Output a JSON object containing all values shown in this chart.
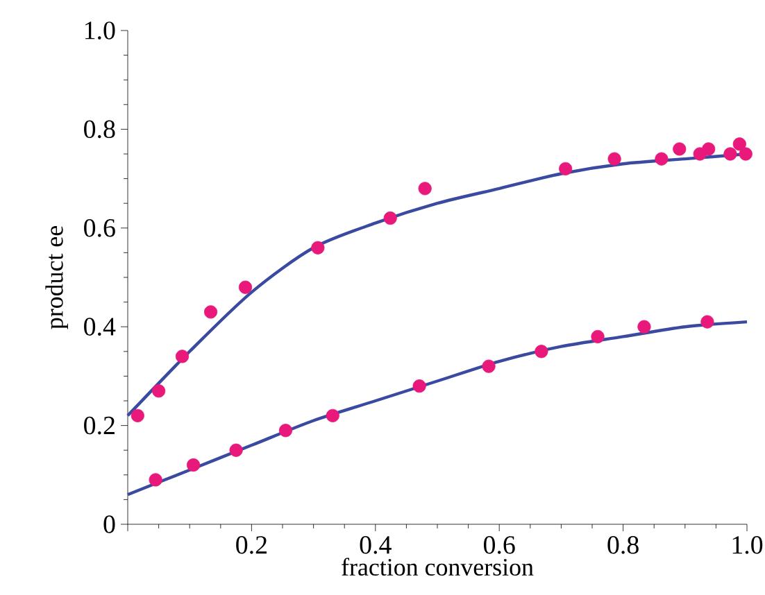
{
  "chart_data": {
    "type": "scatter",
    "xlabel": "fraction conversion",
    "ylabel": "product ee",
    "xlim": [
      0,
      1.0
    ],
    "ylim": [
      0,
      1.0
    ],
    "xticks": [
      {
        "value": 0,
        "label": null
      },
      0.2,
      0.4,
      0.6,
      0.8,
      {
        "value": 1.0,
        "label": "1.0"
      }
    ],
    "yticks": [
      0,
      0.2,
      0.4,
      0.6,
      0.8,
      {
        "value": 1.0,
        "label": "1.0"
      }
    ],
    "grid": false,
    "series": [
      {
        "marker": "circle",
        "color": "#e8197a",
        "x": [
          0.016,
          0.05,
          0.088,
          0.134,
          0.19,
          0.307,
          0.424,
          0.48,
          0.707,
          0.786,
          0.862,
          0.891,
          0.924,
          0.938,
          0.973,
          0.988,
          0.998
        ],
        "values": [
          0.22,
          0.27,
          0.34,
          0.43,
          0.48,
          0.56,
          0.62,
          0.68,
          0.72,
          0.74,
          0.74,
          0.76,
          0.75,
          0.76,
          0.75,
          0.77,
          0.75
        ]
      },
      {
        "marker": "circle",
        "color": "#e8197a",
        "x": [
          0.045,
          0.106,
          0.175,
          0.255,
          0.331,
          0.471,
          0.583,
          0.668,
          0.759,
          0.834,
          0.936
        ],
        "values": [
          0.09,
          0.12,
          0.15,
          0.19,
          0.22,
          0.28,
          0.32,
          0.35,
          0.38,
          0.4,
          0.41
        ]
      },
      {
        "type": "line",
        "color": "#3a4aa0",
        "marker": "none",
        "line_style": "solid",
        "x": [
          0,
          0.1,
          0.2,
          0.3,
          0.4,
          0.5,
          0.6,
          0.7,
          0.8,
          0.9,
          1.0
        ],
        "values": [
          0.22,
          0.35,
          0.47,
          0.56,
          0.61,
          0.65,
          0.68,
          0.71,
          0.73,
          0.74,
          0.75
        ]
      },
      {
        "type": "line",
        "color": "#3a4aa0",
        "marker": "none",
        "line_style": "solid",
        "x": [
          0,
          0.1,
          0.2,
          0.3,
          0.4,
          0.5,
          0.6,
          0.7,
          0.8,
          0.9,
          1.0
        ],
        "values": [
          0.06,
          0.11,
          0.16,
          0.21,
          0.25,
          0.29,
          0.33,
          0.36,
          0.38,
          0.4,
          0.41
        ]
      }
    ]
  }
}
